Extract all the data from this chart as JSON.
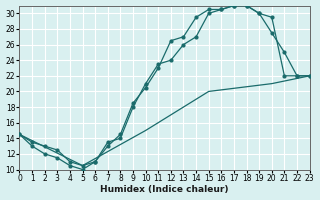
{
  "xlabel": "Humidex (Indice chaleur)",
  "ylabel": "",
  "bg_color": "#d9f0f0",
  "grid_color": "#ffffff",
  "line_color": "#1a6b6b",
  "xlim": [
    0,
    23
  ],
  "ylim": [
    10,
    31
  ],
  "xticks": [
    0,
    1,
    2,
    3,
    4,
    5,
    6,
    7,
    8,
    9,
    10,
    11,
    12,
    13,
    14,
    15,
    16,
    17,
    18,
    19,
    20,
    21,
    22,
    23
  ],
  "yticks": [
    10,
    12,
    14,
    16,
    18,
    20,
    22,
    24,
    26,
    28,
    30
  ],
  "line1_x": [
    0,
    1,
    2,
    3,
    4,
    5,
    6,
    7,
    8,
    9,
    10,
    11,
    12,
    13,
    14,
    15,
    16,
    17,
    18,
    19,
    20,
    21,
    22,
    23
  ],
  "line1_y": [
    14.5,
    13,
    12,
    11.5,
    10.5,
    10,
    11,
    13,
    14.5,
    18.5,
    20.5,
    23,
    26.5,
    27,
    29.5,
    30.5,
    30.5,
    31,
    31,
    30,
    29.5,
    22,
    22,
    22
  ],
  "line2_x": [
    0,
    1,
    2,
    3,
    4,
    5,
    6,
    7,
    8,
    9,
    10,
    11,
    12,
    13,
    14,
    15,
    16,
    17,
    18,
    19,
    20,
    21,
    22,
    23
  ],
  "line2_y": [
    14.5,
    13.5,
    13,
    12.5,
    11,
    10.5,
    11,
    13.5,
    14,
    18,
    21,
    23.5,
    24,
    26,
    27,
    30,
    30.5,
    31,
    31,
    30,
    27.5,
    25,
    22,
    22
  ],
  "line3_x": [
    0,
    5,
    10,
    15,
    20,
    23
  ],
  "line3_y": [
    14.5,
    10.5,
    15,
    20,
    21,
    22
  ]
}
